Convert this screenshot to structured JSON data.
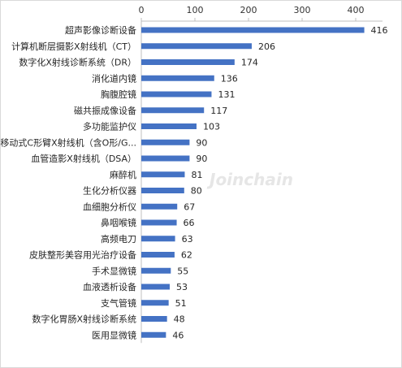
{
  "chart_data": {
    "type": "bar",
    "orientation": "horizontal",
    "categories": [
      "超声影像诊断设备",
      "计算机断层摄影X射线机（CT）",
      "数字化X射线诊断系统（DR）",
      "消化道内镜",
      "胸腹腔镜",
      "磁共振成像设备",
      "多功能监护仪",
      "移动式C形臂X射线机（含O形/G...",
      "血管造影X射线机（DSA）",
      "麻醉机",
      "生化分析仪器",
      "血细胞分析仪",
      "鼻咽喉镜",
      "高频电刀",
      "皮肤整形美容用光治疗设备",
      "手术显微镜",
      "血液透析设备",
      "支气管镜",
      "数字化胃肠X射线诊断系统",
      "医用显微镜"
    ],
    "values": [
      416,
      206,
      174,
      136,
      131,
      117,
      103,
      90,
      90,
      81,
      80,
      67,
      66,
      63,
      62,
      55,
      53,
      51,
      48,
      46
    ],
    "xlim": [
      0,
      450
    ],
    "xticks": [
      "0",
      "100",
      "200",
      "300",
      "400"
    ],
    "axis_position": "top",
    "data_labels": true,
    "grid": false,
    "bar_color": "#4472C4",
    "watermark": "Joinchain"
  }
}
